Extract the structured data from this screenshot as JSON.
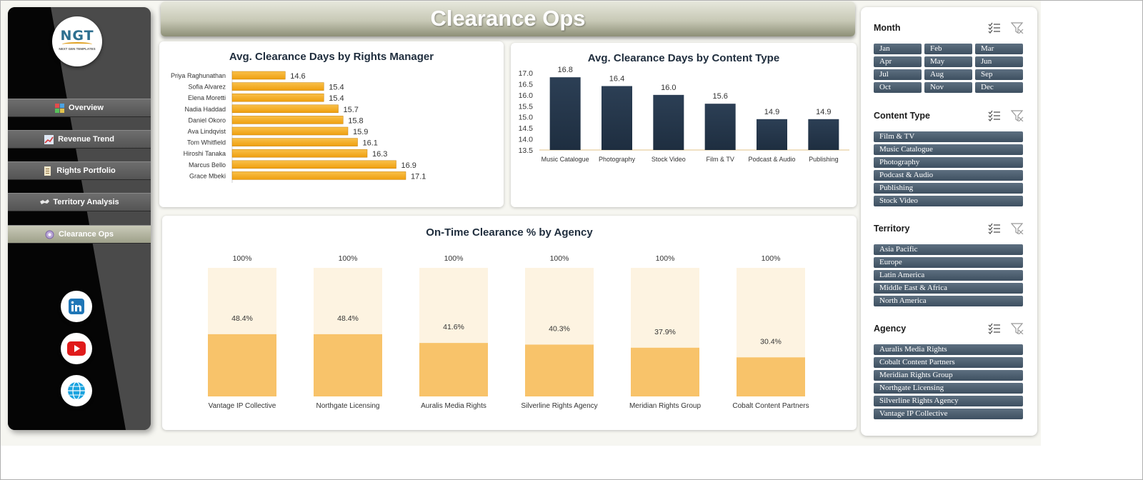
{
  "header": {
    "title": "Clearance Ops"
  },
  "logo": {
    "text": "NGT",
    "subtext": "NEXT GEN TEMPLATES"
  },
  "nav": [
    {
      "label": "Overview",
      "icon": "overview-icon"
    },
    {
      "label": "Revenue Trend",
      "icon": "revenue-trend-icon"
    },
    {
      "label": "Rights Portfolio",
      "icon": "rights-portfolio-icon"
    },
    {
      "label": "Territory Analysis",
      "icon": "territory-analysis-icon"
    },
    {
      "label": "Clearance Ops",
      "icon": "clearance-ops-icon",
      "active": true
    }
  ],
  "social": [
    "linkedin-icon",
    "youtube-icon",
    "globe-icon"
  ],
  "colors": {
    "bar_orange": "#ef9f0f",
    "bar_navy": "#1e2e40",
    "stack_light": "#fdf3e1",
    "stack_orange": "#f8c36a",
    "chip": "#4c5e70"
  },
  "chart_data": [
    {
      "type": "bar",
      "orientation": "horizontal",
      "title": "Avg. Clearance Days by Rights Manager",
      "categories": [
        "Priya Raghunathan",
        "Sofia Alvarez",
        "Elena Moretti",
        "Nadia Haddad",
        "Daniel Okoro",
        "Ava Lindqvist",
        "Tom Whitfield",
        "Hiroshi Tanaka",
        "Marcus Bello",
        "Grace Mbeki"
      ],
      "values": [
        14.6,
        15.4,
        15.4,
        15.7,
        15.8,
        15.9,
        16.1,
        16.3,
        16.9,
        17.1
      ],
      "xlim": [
        13.5,
        17.5
      ],
      "data_labels": [
        "14.6",
        "15.4",
        "15.4",
        "15.7",
        "15.8",
        "15.9",
        "16.1",
        "16.3",
        "16.9",
        "17.1"
      ]
    },
    {
      "type": "bar",
      "orientation": "vertical",
      "title": "Avg. Clearance Days by Content Type",
      "categories": [
        "Music Catalogue",
        "Photography",
        "Stock Video",
        "Film & TV",
        "Podcast & Audio",
        "Publishing"
      ],
      "values": [
        16.8,
        16.4,
        16.0,
        15.6,
        14.9,
        14.9
      ],
      "data_labels": [
        "16.8",
        "16.4",
        "16.0",
        "15.6",
        "14.9",
        "14.9"
      ],
      "ylim": [
        13.5,
        17.0
      ],
      "yticks": [
        "17.0",
        "16.5",
        "16.0",
        "15.5",
        "15.0",
        "14.5",
        "14.0",
        "13.5"
      ]
    },
    {
      "type": "bar",
      "stacked": true,
      "title": "On-Time Clearance % by Agency",
      "categories": [
        "Vantage IP Collective",
        "Northgate Licensing",
        "Auralis Media Rights",
        "Silverline Rights Agency",
        "Meridian Rights Group",
        "Cobalt Content Partners"
      ],
      "values": [
        48.4,
        48.4,
        41.6,
        40.3,
        37.9,
        30.4
      ],
      "data_labels": [
        "48.4%",
        "48.4%",
        "41.6%",
        "40.3%",
        "37.9%",
        "30.4%"
      ],
      "total_labels": [
        "100%",
        "100%",
        "100%",
        "100%",
        "100%",
        "100%"
      ],
      "ylim": [
        0,
        100
      ]
    }
  ],
  "slicers": [
    {
      "title": "Month",
      "layout": "grid",
      "items": [
        "Jan",
        "Feb",
        "Mar",
        "Apr",
        "May",
        "Jun",
        "Jul",
        "Aug",
        "Sep",
        "Oct",
        "Nov",
        "Dec"
      ]
    },
    {
      "title": "Content Type",
      "layout": "list",
      "items": [
        "Film & TV",
        "Music Catalogue",
        "Photography",
        "Podcast & Audio",
        "Publishing",
        "Stock Video"
      ]
    },
    {
      "title": "Territory",
      "layout": "list",
      "items": [
        "Asia Pacific",
        "Europe",
        "Latin America",
        "Middle East & Africa",
        "North America"
      ]
    },
    {
      "title": "Agency",
      "layout": "list",
      "items": [
        "Auralis Media Rights",
        "Cobalt Content Partners",
        "Meridian Rights Group",
        "Northgate Licensing",
        "Silverline Rights Agency",
        "Vantage IP Collective"
      ]
    }
  ]
}
